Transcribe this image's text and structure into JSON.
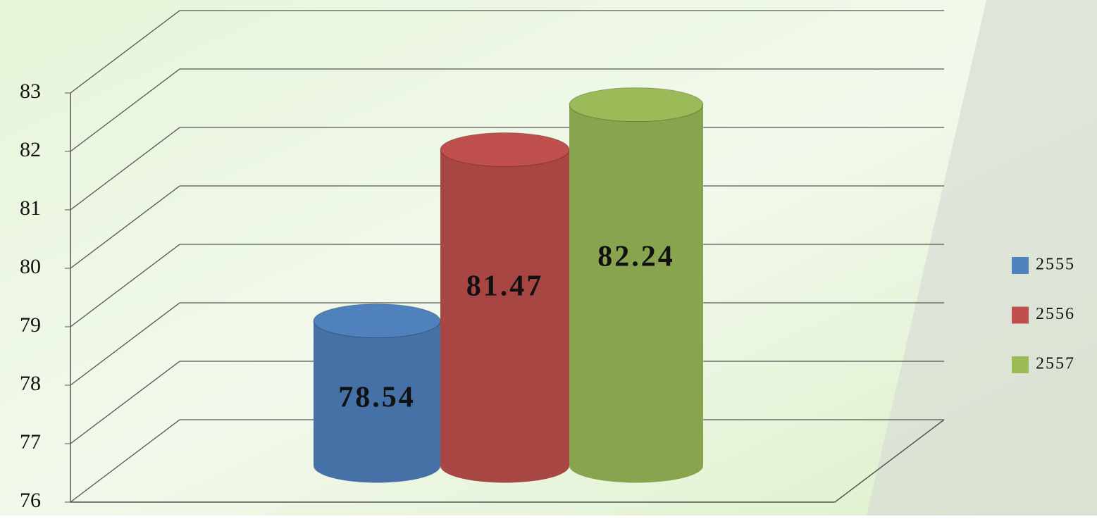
{
  "chart_data": {
    "type": "cylinder",
    "categories": [
      null
    ],
    "series": [
      {
        "name": "2555",
        "color": "#4f81bd",
        "values": [
          78.54
        ]
      },
      {
        "name": "2556",
        "color": "#c0504d",
        "values": [
          81.47
        ]
      },
      {
        "name": "2557",
        "color": "#9bbb59",
        "values": [
          82.24
        ]
      }
    ],
    "ylim": [
      76,
      83
    ],
    "yticks": [
      76,
      77,
      78,
      79,
      80,
      81,
      82,
      83
    ],
    "grid": true,
    "legend": "right"
  }
}
